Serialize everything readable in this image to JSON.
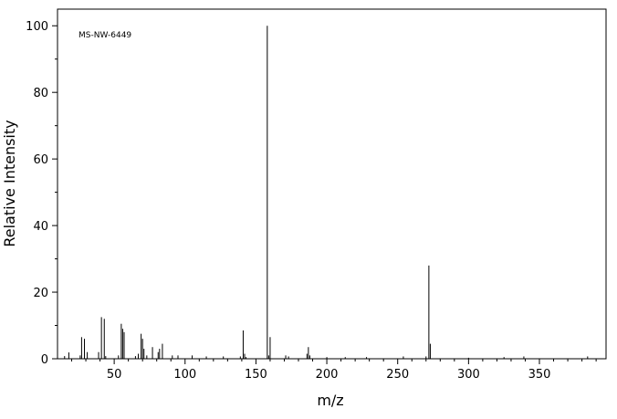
{
  "chart_data": {
    "type": "bar",
    "annotation": "MS-NW-6449",
    "xlabel": "m/z",
    "ylabel": "Relative Intensity",
    "x": [
      15,
      18,
      26,
      27,
      29,
      31,
      39,
      41,
      43,
      44,
      53,
      55,
      56,
      57,
      65,
      67,
      69,
      70,
      71,
      73,
      77,
      81,
      82,
      84,
      91,
      95,
      105,
      115,
      127,
      139,
      141,
      142,
      143,
      158,
      159,
      160,
      171,
      173,
      186,
      187,
      188,
      200,
      213,
      228,
      254,
      270,
      272,
      273,
      300,
      325,
      339,
      384
    ],
    "values": [
      0.8,
      1.9,
      1,
      6.5,
      6,
      2,
      2,
      12.5,
      12,
      0.8,
      1,
      10.5,
      9,
      8,
      0.8,
      1.5,
      7.5,
      6,
      3,
      1,
      3.5,
      2,
      3,
      4.5,
      1,
      1,
      1,
      0.7,
      0.7,
      0.7,
      8.5,
      1.5,
      0.5,
      100,
      1,
      6.5,
      1,
      0.7,
      1.5,
      3.5,
      1,
      0.5,
      0.5,
      0.5,
      0.7,
      0.7,
      28,
      4.5,
      0.3,
      0.5,
      0.7,
      0.7
    ],
    "color": "#000000",
    "xlim": [
      10,
      397
    ],
    "ylim": [
      0,
      105
    ],
    "xticks": [
      50,
      100,
      150,
      200,
      250,
      300,
      350
    ],
    "yticks": [
      0,
      20,
      40,
      60,
      80,
      100
    ],
    "xminorticks": [
      20,
      30,
      40,
      60,
      70,
      80,
      90,
      110,
      120,
      130,
      140,
      160,
      170,
      180,
      190,
      210,
      220,
      230,
      240,
      260,
      270,
      280,
      290,
      310,
      320,
      330,
      340,
      360,
      370,
      380,
      390
    ],
    "yminorticks": [
      10,
      30,
      50,
      70,
      90
    ]
  }
}
